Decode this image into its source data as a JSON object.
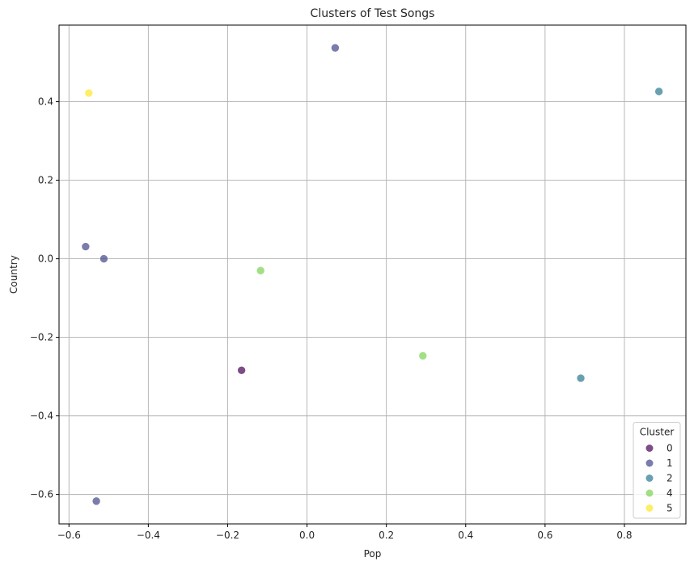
{
  "chart_data": {
    "type": "scatter",
    "title": "Clusters of Test Songs",
    "xlabel": "Pop",
    "ylabel": "Country",
    "xlim": [
      -0.625,
      0.955
    ],
    "ylim": [
      -0.675,
      0.595
    ],
    "xticks": [
      -0.6,
      -0.4,
      -0.2,
      0.0,
      0.2,
      0.4,
      0.6,
      0.8
    ],
    "xtick_labels": [
      "−0.6",
      "−0.4",
      "−0.2",
      "0.0",
      "0.2",
      "0.4",
      "0.6",
      "0.8"
    ],
    "yticks": [
      -0.6,
      -0.4,
      -0.2,
      0.0,
      0.2,
      0.4
    ],
    "ytick_labels": [
      "−0.6",
      "−0.4",
      "−0.2",
      "0.0",
      "0.2",
      "0.4"
    ],
    "grid": true,
    "legend": {
      "title": "Cluster",
      "placement": "bottom-right",
      "entries": [
        {
          "label": "0",
          "color": "#440154"
        },
        {
          "label": "1",
          "color": "#414487"
        },
        {
          "label": "2",
          "color": "#2a788e"
        },
        {
          "label": "4",
          "color": "#7ad151"
        },
        {
          "label": "5",
          "color": "#fde725"
        }
      ]
    },
    "points": [
      {
        "x": 0.071,
        "y": 0.537,
        "cluster": "1"
      },
      {
        "x": 0.887,
        "y": 0.426,
        "cluster": "2"
      },
      {
        "x": -0.55,
        "y": 0.422,
        "cluster": "5"
      },
      {
        "x": -0.558,
        "y": 0.031,
        "cluster": "1"
      },
      {
        "x": -0.512,
        "y": 0.0,
        "cluster": "1"
      },
      {
        "x": -0.117,
        "y": -0.03,
        "cluster": "4"
      },
      {
        "x": -0.165,
        "y": -0.284,
        "cluster": "0"
      },
      {
        "x": 0.292,
        "y": -0.247,
        "cluster": "4"
      },
      {
        "x": 0.69,
        "y": -0.304,
        "cluster": "2"
      },
      {
        "x": -0.531,
        "y": -0.617,
        "cluster": "1"
      }
    ]
  }
}
